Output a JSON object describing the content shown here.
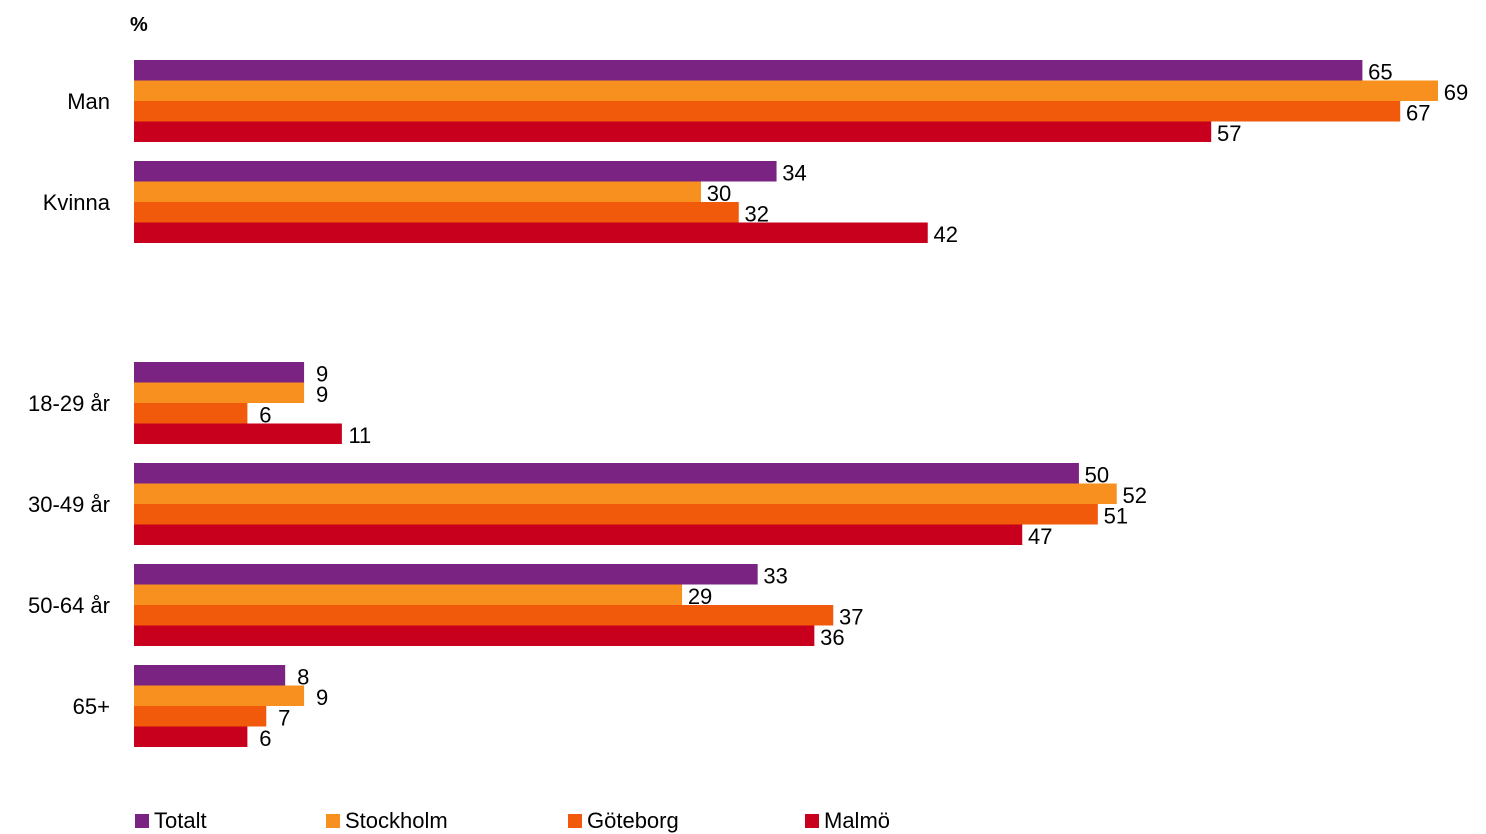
{
  "chart_data": {
    "type": "bar",
    "orientation": "horizontal",
    "unit_label": "%",
    "groups": [
      [
        "Man",
        "Kvinna"
      ],
      [
        "18-29 år",
        "30-49 år",
        "50-64 år",
        "65+"
      ]
    ],
    "categories": [
      "Man",
      "Kvinna",
      "18-29 år",
      "30-49 år",
      "50-64 år",
      "65+"
    ],
    "series": [
      {
        "name": "Totalt",
        "color": "#7B2382",
        "values": [
          65,
          34,
          9,
          50,
          33,
          8
        ]
      },
      {
        "name": "Stockholm",
        "color": "#F7901E",
        "values": [
          69,
          30,
          9,
          52,
          29,
          9
        ]
      },
      {
        "name": "Göteborg",
        "color": "#F05A0A",
        "values": [
          67,
          32,
          6,
          51,
          37,
          7
        ]
      },
      {
        "name": "Malmö",
        "color": "#C8001E",
        "values": [
          57,
          42,
          11,
          47,
          36,
          6
        ]
      }
    ],
    "xlim": [
      0,
      69
    ],
    "grid": false,
    "legend_position": "bottom"
  }
}
